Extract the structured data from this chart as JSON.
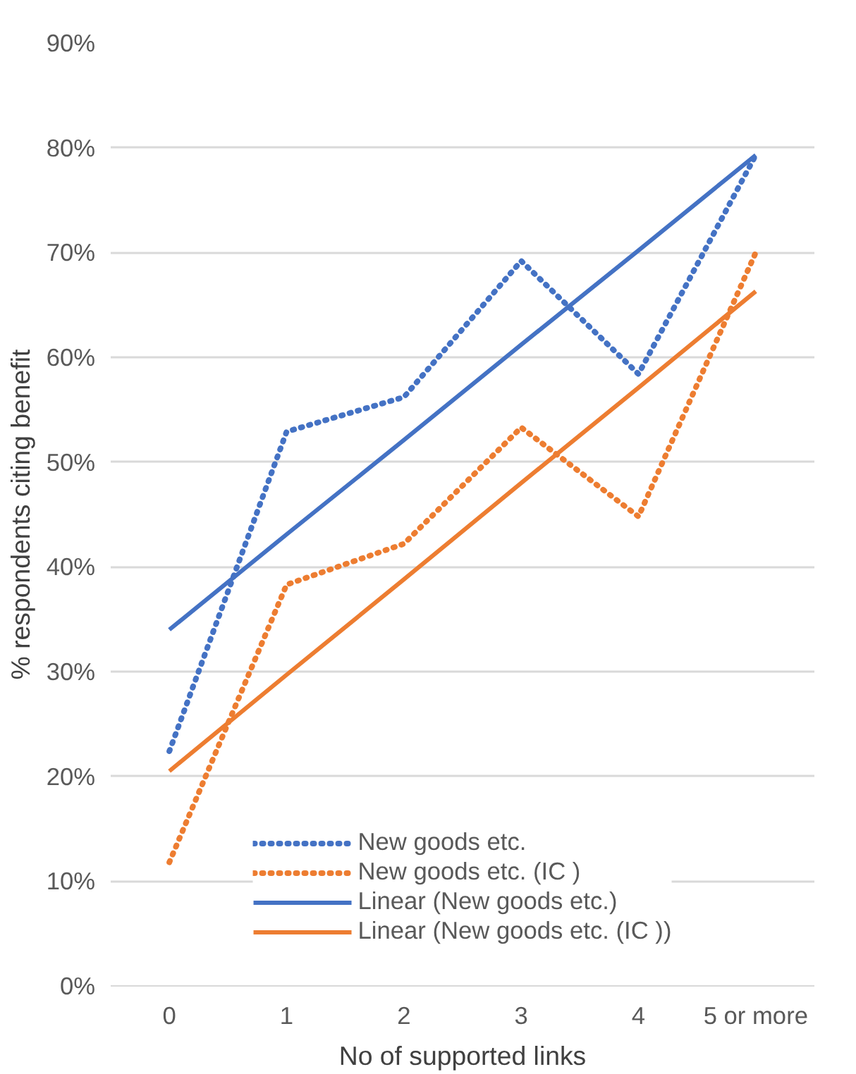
{
  "chart_data": {
    "type": "line",
    "xlabel": "No of supported links",
    "ylabel": "% respondents citing benefit",
    "categories": [
      "0",
      "1",
      "2",
      "3",
      "4",
      "5 or more"
    ],
    "series": [
      {
        "name": "New goods etc.",
        "color": "#4472c4",
        "line_style": "dotted",
        "values": [
          22.4,
          52.9,
          56.2,
          69.2,
          58.4,
          79.3
        ]
      },
      {
        "name": "New goods etc. (IC )",
        "color": "#ed7d31",
        "line_style": "dotted",
        "values": [
          11.8,
          38.3,
          42.2,
          53.3,
          44.8,
          70.0
        ]
      },
      {
        "name": "Linear (New goods etc.)",
        "color": "#4472c4",
        "line_style": "solid",
        "values": [
          34.0,
          43.1,
          52.1,
          61.2,
          70.2,
          79.3
        ]
      },
      {
        "name": "Linear (New goods etc. (IC ))",
        "color": "#ed7d31",
        "line_style": "solid",
        "values": [
          20.5,
          29.7,
          38.8,
          48.0,
          57.1,
          66.3
        ]
      }
    ],
    "ylim": [
      0,
      90
    ],
    "yticks": [
      {
        "value": 0,
        "label": "0%"
      },
      {
        "value": 10,
        "label": "10%"
      },
      {
        "value": 20,
        "label": "20%"
      },
      {
        "value": 30,
        "label": "30%"
      },
      {
        "value": 40,
        "label": "40%"
      },
      {
        "value": 50,
        "label": "50%"
      },
      {
        "value": 60,
        "label": "60%"
      },
      {
        "value": 70,
        "label": "70%"
      },
      {
        "value": 80,
        "label": "80%"
      },
      {
        "value": 90,
        "label": "90%"
      }
    ],
    "grid": "y",
    "legend": "bottom",
    "marker": "none"
  }
}
